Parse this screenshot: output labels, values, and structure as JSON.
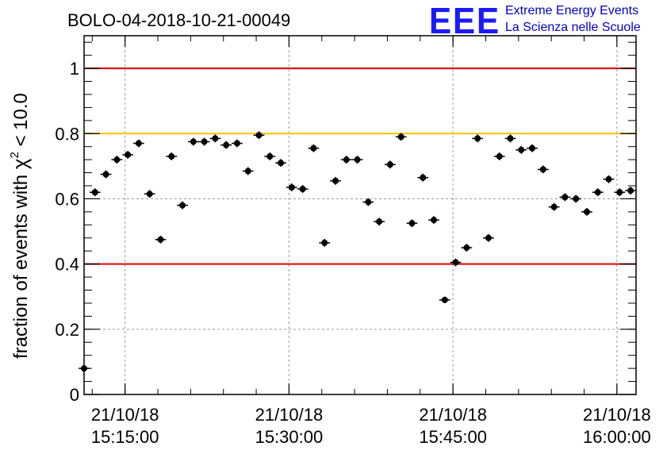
{
  "chart_data": {
    "type": "scatter",
    "title": "BOLO-04-2018-10-21-00049",
    "ylabel": "fraction of events with",
    "ylabel_symbol": "χ",
    "ylabel_exponent": "2",
    "ylabel_suffix": " < 10.0",
    "xlabel": "",
    "ylim": [
      0,
      1.1
    ],
    "y_ticks": [
      0,
      0.2,
      0.4,
      0.6,
      0.8,
      1
    ],
    "y_tick_labels": [
      "0",
      "0.2",
      "0.4",
      "0.6",
      "0.8",
      "1"
    ],
    "x_time_range": [
      "15:11:15",
      "16:01:45"
    ],
    "x_ticks": [
      {
        "time": "15:15:00",
        "date": "21/10/18"
      },
      {
        "time": "15:30:00",
        "date": "21/10/18"
      },
      {
        "time": "15:45:00",
        "date": "21/10/18"
      },
      {
        "time": "16:00:00",
        "date": "21/10/18"
      }
    ],
    "grid": true,
    "reference_lines": [
      {
        "y": 1.0,
        "color": "#e00000"
      },
      {
        "y": 0.8,
        "color": "#ffbf00"
      },
      {
        "y": 0.4,
        "color": "#e00000"
      }
    ],
    "marker_color": "#000000",
    "series": [
      {
        "x": [
          "15:11:15",
          "15:12:15",
          "15:13:15",
          "15:14:15",
          "15:15:15",
          "15:16:15",
          "15:17:15",
          "15:18:15",
          "15:19:15",
          "15:20:15",
          "15:21:15",
          "15:22:15",
          "15:23:15",
          "15:24:15",
          "15:25:15",
          "15:26:15",
          "15:27:15",
          "15:28:15",
          "15:29:15",
          "15:30:15",
          "15:31:15",
          "15:32:15",
          "15:33:15",
          "15:34:15",
          "15:35:15",
          "15:36:15",
          "15:37:15",
          "15:38:15",
          "15:39:15",
          "15:40:15",
          "15:41:15",
          "15:42:15",
          "15:43:15",
          "15:44:15",
          "15:45:15",
          "15:46:15",
          "15:47:15",
          "15:48:15",
          "15:49:15",
          "15:50:15",
          "15:51:15",
          "15:52:15",
          "15:53:15",
          "15:54:15",
          "15:55:15",
          "15:56:15",
          "15:57:15",
          "15:58:15",
          "15:59:15",
          "16:00:15",
          "16:01:15"
        ],
        "y": [
          0.08,
          0.62,
          0.675,
          0.72,
          0.735,
          0.77,
          0.615,
          0.475,
          0.73,
          0.58,
          0.775,
          0.775,
          0.785,
          0.765,
          0.77,
          0.685,
          0.795,
          0.73,
          0.71,
          0.635,
          0.63,
          0.755,
          0.465,
          0.655,
          0.72,
          0.72,
          0.59,
          0.53,
          0.705,
          0.79,
          0.525,
          0.665,
          0.535,
          0.29,
          0.405,
          0.45,
          0.785,
          0.48,
          0.73,
          0.785,
          0.75,
          0.755,
          0.69,
          0.575,
          0.605,
          0.6,
          0.56,
          0.62,
          0.66,
          0.62,
          0.625
        ],
        "y_err": [
          0.01,
          0.012,
          0.012,
          0.012,
          0.012,
          0.012,
          0.012,
          0.012,
          0.012,
          0.012,
          0.012,
          0.012,
          0.012,
          0.012,
          0.012,
          0.012,
          0.012,
          0.012,
          0.012,
          0.012,
          0.012,
          0.012,
          0.012,
          0.012,
          0.012,
          0.012,
          0.012,
          0.012,
          0.012,
          0.012,
          0.012,
          0.012,
          0.012,
          0.01,
          0.012,
          0.012,
          0.012,
          0.012,
          0.012,
          0.012,
          0.012,
          0.012,
          0.012,
          0.012,
          0.012,
          0.012,
          0.012,
          0.012,
          0.012,
          0.012,
          0.012
        ],
        "x_err_seconds": 30
      }
    ]
  },
  "logo": {
    "mark": "EEE",
    "line1": "Extreme Energy Events",
    "line2": "La Scienza nelle Scuole"
  }
}
